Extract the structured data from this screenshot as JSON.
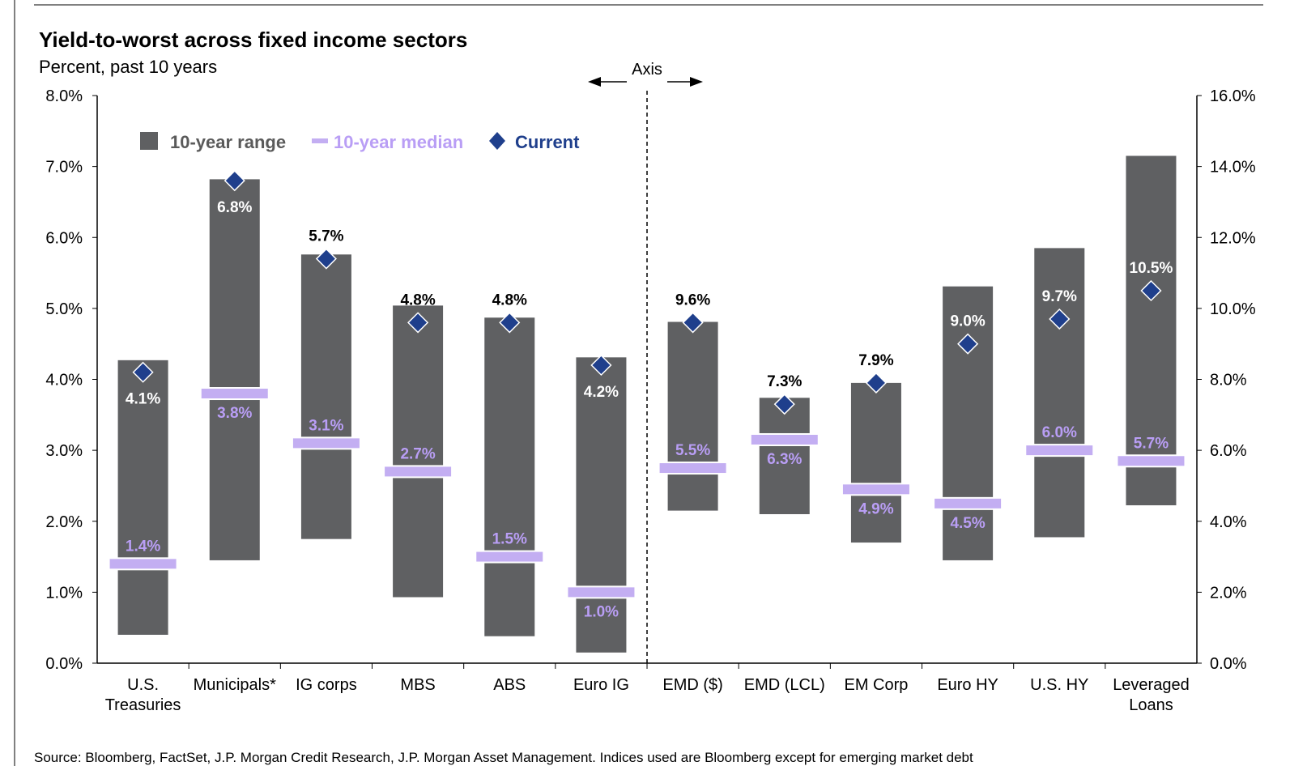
{
  "title": "Yield-to-worst across fixed income sectors",
  "subtitle": "Percent, past 10 years",
  "source": "Source: Bloomberg, FactSet, J.P. Morgan Credit Research, J.P. Morgan Asset Management. Indices used are Bloomberg except for emerging market debt",
  "axis_note": "Axis",
  "colors": {
    "range": "#5f6062",
    "median": "#c3aef2",
    "median_text": "#b99ef5",
    "current": "#1f3f8c"
  },
  "legend": {
    "range": "10-year range",
    "median": "10-year median",
    "current": "Current"
  },
  "chart_data": {
    "type": "bar",
    "title": "Yield-to-worst across fixed income sectors",
    "subtitle": "Percent, past 10 years",
    "left_axis": {
      "ylim": [
        0,
        8
      ],
      "ticks": [
        "0.0%",
        "1.0%",
        "2.0%",
        "3.0%",
        "4.0%",
        "5.0%",
        "6.0%",
        "7.0%",
        "8.0%"
      ]
    },
    "right_axis": {
      "ylim": [
        0,
        16
      ],
      "ticks": [
        "0.0%",
        "2.0%",
        "4.0%",
        "6.0%",
        "8.0%",
        "10.0%",
        "12.0%",
        "14.0%",
        "16.0%"
      ]
    },
    "legend_position": "top-left",
    "categories": [
      {
        "label": [
          "U.S.",
          "Treasuries"
        ],
        "axis": "left",
        "min": 0.4,
        "max": 4.27,
        "median": 1.4,
        "current": 4.1,
        "median_label": "1.4%",
        "current_label": "4.1%",
        "median_label_pos": "above",
        "current_label_pos": "below"
      },
      {
        "label": [
          "Municipals*"
        ],
        "axis": "left",
        "min": 1.45,
        "max": 6.82,
        "median": 3.8,
        "current": 6.8,
        "median_label": "3.8%",
        "current_label": "6.8%",
        "median_label_pos": "below",
        "current_label_pos": "below"
      },
      {
        "label": [
          "IG corps"
        ],
        "axis": "left",
        "min": 1.75,
        "max": 5.76,
        "median": 3.1,
        "current": 5.7,
        "median_label": "3.1%",
        "current_label": "5.7%",
        "median_label_pos": "above",
        "current_label_pos": "above"
      },
      {
        "label": [
          "MBS"
        ],
        "axis": "left",
        "min": 0.93,
        "max": 5.04,
        "median": 2.7,
        "current": 4.8,
        "median_label": "2.7%",
        "current_label": "4.8%",
        "median_label_pos": "above",
        "current_label_pos": "above"
      },
      {
        "label": [
          "ABS"
        ],
        "axis": "left",
        "min": 0.38,
        "max": 4.87,
        "median": 1.5,
        "current": 4.8,
        "median_label": "1.5%",
        "current_label": "4.8%",
        "median_label_pos": "above",
        "current_label_pos": "above"
      },
      {
        "label": [
          "Euro IG"
        ],
        "axis": "left",
        "min": 0.15,
        "max": 4.31,
        "median": 1.0,
        "current": 4.2,
        "median_label": "1.0%",
        "current_label": "4.2%",
        "median_label_pos": "below",
        "current_label_pos": "below"
      },
      {
        "label": [
          "EMD ($)"
        ],
        "axis": "right",
        "min": 4.3,
        "max": 9.62,
        "median": 5.5,
        "current": 9.6,
        "median_label": "5.5%",
        "current_label": "9.6%",
        "median_label_pos": "above",
        "current_label_pos": "above"
      },
      {
        "label": [
          "EMD (LCL)"
        ],
        "axis": "right",
        "min": 4.2,
        "max": 7.48,
        "median": 6.3,
        "current": 7.3,
        "median_label": "6.3%",
        "current_label": "7.3%",
        "median_label_pos": "below",
        "current_label_pos": "above"
      },
      {
        "label": [
          "EM Corp"
        ],
        "axis": "right",
        "min": 3.4,
        "max": 7.9,
        "median": 4.9,
        "current": 7.9,
        "median_label": "4.9%",
        "current_label": "7.9%",
        "median_label_pos": "below",
        "current_label_pos": "above"
      },
      {
        "label": [
          "Euro HY"
        ],
        "axis": "right",
        "min": 2.9,
        "max": 10.62,
        "median": 4.5,
        "current": 9.0,
        "median_label": "4.5%",
        "current_label": "9.0%",
        "median_label_pos": "below",
        "current_label_pos": "above"
      },
      {
        "label": [
          "U.S. HY"
        ],
        "axis": "right",
        "min": 3.55,
        "max": 11.7,
        "median": 6.0,
        "current": 9.7,
        "median_label": "6.0%",
        "current_label": "9.7%",
        "median_label_pos": "above",
        "current_label_pos": "above"
      },
      {
        "label": [
          "Leveraged",
          "Loans"
        ],
        "axis": "right",
        "min": 4.45,
        "max": 14.3,
        "median": 5.7,
        "current": 10.5,
        "median_label": "5.7%",
        "current_label": "10.5%",
        "median_label_pos": "above",
        "current_label_pos": "above"
      }
    ]
  }
}
